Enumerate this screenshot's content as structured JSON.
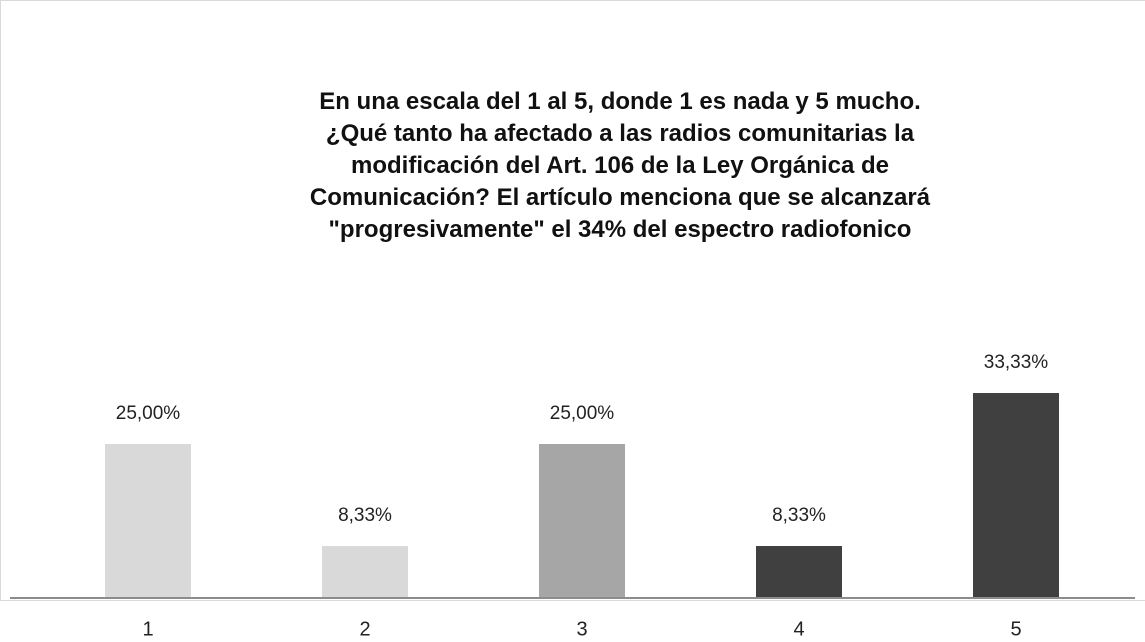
{
  "chart_data": {
    "type": "bar",
    "title": "En una escala del 1 al 5, donde 1 es nada y 5 mucho. ¿Qué tanto ha afectado a las radios comunitarias la modificación del Art. 106 de la Ley Orgánica de Comunicación? El artículo menciona que se alcanzará \"progresivamente\" el 34% del espectro radiofonico",
    "categories": [
      "1",
      "2",
      "3",
      "4",
      "5"
    ],
    "values": [
      25,
      8.33,
      25,
      8.33,
      33.33
    ],
    "value_labels": [
      "25,00%",
      "8,33%",
      "25,00%",
      "8,33%",
      "33,33%"
    ],
    "colors": [
      "#d9d9d9",
      "#d9d9d9",
      "#a6a6a6",
      "#404040",
      "#404040"
    ]
  }
}
